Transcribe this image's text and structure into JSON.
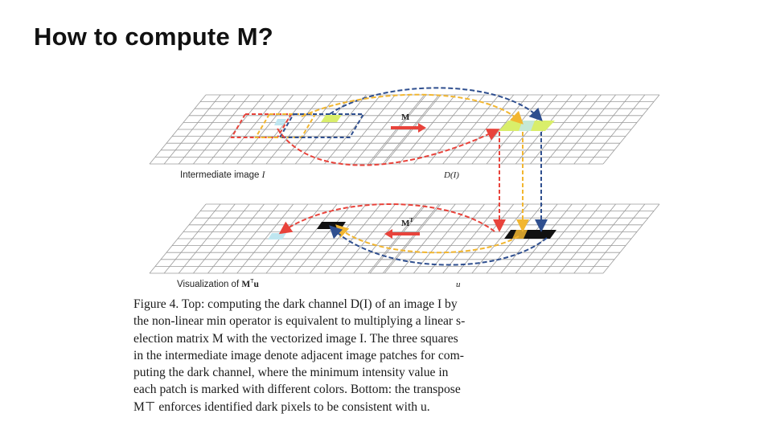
{
  "slide": {
    "title": "How to compute M?"
  },
  "figure": {
    "label_intermediate": "Intermediate image",
    "label_intermediate_var": "I",
    "label_dark_channel": "D(I)",
    "label_visualization": "Visualization of",
    "label_visualization_var": "M",
    "label_visualization_sup": "T",
    "label_visualization_vec": "u",
    "label_u": "u",
    "label_M": "M",
    "label_MT": "M",
    "label_MT_sup": "T",
    "colors": {
      "red": "#e8433b",
      "orange": "#f2b630",
      "blue": "#2f4f8f",
      "yellow_green": "#d9ee6a",
      "light_blue": "#bfe6f0",
      "black": "#111111",
      "grid": "#9a9a9a"
    }
  },
  "caption": {
    "lines": [
      "Figure 4. Top: computing the dark channel D(I) of an image I by",
      "the non-linear min operator is equivalent to multiplying a linear s-",
      "election matrix M with the vectorized image I. The three squares",
      "in the intermediate image denote adjacent image patches for com-",
      "puting the dark channel, where the minimum intensity value in",
      "each patch is marked with different colors. Bottom: the transpose",
      "M⊤ enforces identified dark pixels to be consistent with u."
    ]
  }
}
